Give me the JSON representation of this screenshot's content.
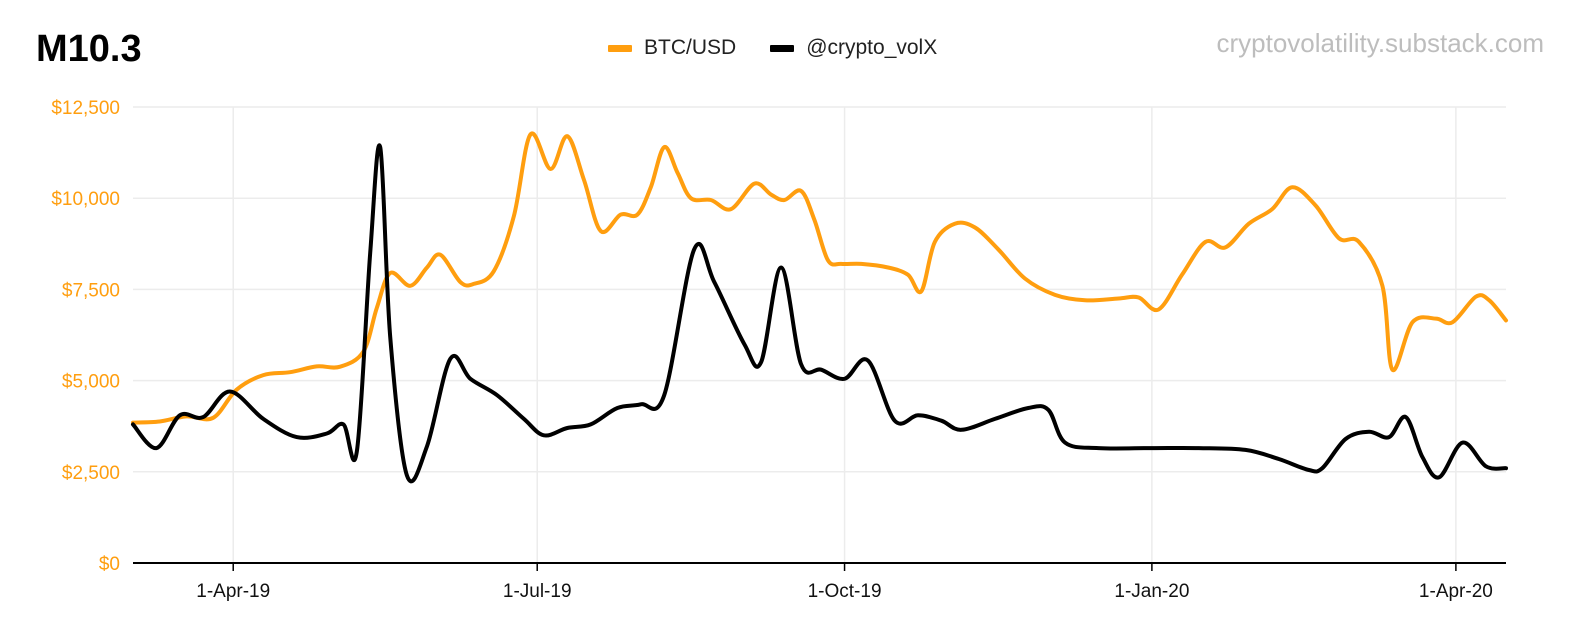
{
  "title": "M10.3",
  "watermark": "cryptovolatility.substack.com",
  "colors": {
    "btc": "#FF9E0F",
    "volx": "#000000",
    "ytick": "#FF9E0F",
    "grid": "#ECECEC",
    "axis": "#000000"
  },
  "chart_data": {
    "type": "line",
    "x_type": "date",
    "xlim": [
      "2019-03-02",
      "2020-04-16"
    ],
    "ylim": [
      0,
      12500
    ],
    "yticks": [
      0,
      2500,
      5000,
      7500,
      10000,
      12500
    ],
    "ytick_labels": [
      "$0",
      "$2,500",
      "$5,000",
      "$7,500",
      "$10,000",
      "$12,500"
    ],
    "xticks": [
      "2019-04-01",
      "2019-07-01",
      "2019-10-01",
      "2020-01-01",
      "2020-04-01"
    ],
    "xtick_labels": [
      "1-Apr-19",
      "1-Jul-19",
      "1-Oct-19",
      "1-Jan-20",
      "1-Apr-20"
    ],
    "grid": true,
    "legend_position": "top-center",
    "series": [
      {
        "name": "BTC/USD",
        "color": "#FF9E0F",
        "points": [
          [
            "2019-03-02",
            3850
          ],
          [
            "2019-03-10",
            3880
          ],
          [
            "2019-03-18",
            4020
          ],
          [
            "2019-03-26",
            3980
          ],
          [
            "2019-04-02",
            4750
          ],
          [
            "2019-04-10",
            5150
          ],
          [
            "2019-04-18",
            5230
          ],
          [
            "2019-04-26",
            5390
          ],
          [
            "2019-05-03",
            5380
          ],
          [
            "2019-05-10",
            5800
          ],
          [
            "2019-05-14",
            7000
          ],
          [
            "2019-05-18",
            7950
          ],
          [
            "2019-05-24",
            7600
          ],
          [
            "2019-05-29",
            8100
          ],
          [
            "2019-06-02",
            8450
          ],
          [
            "2019-06-08",
            7700
          ],
          [
            "2019-06-12",
            7650
          ],
          [
            "2019-06-18",
            8000
          ],
          [
            "2019-06-24",
            9500
          ],
          [
            "2019-06-29",
            11750
          ],
          [
            "2019-07-05",
            10800
          ],
          [
            "2019-07-10",
            11700
          ],
          [
            "2019-07-15",
            10500
          ],
          [
            "2019-07-20",
            9100
          ],
          [
            "2019-07-26",
            9550
          ],
          [
            "2019-07-31",
            9550
          ],
          [
            "2019-08-04",
            10300
          ],
          [
            "2019-08-08",
            11400
          ],
          [
            "2019-08-12",
            10700
          ],
          [
            "2019-08-16",
            10000
          ],
          [
            "2019-08-22",
            9950
          ],
          [
            "2019-08-28",
            9700
          ],
          [
            "2019-09-04",
            10400
          ],
          [
            "2019-09-09",
            10100
          ],
          [
            "2019-09-13",
            9950
          ],
          [
            "2019-09-18",
            10200
          ],
          [
            "2019-09-22",
            9400
          ],
          [
            "2019-09-26",
            8300
          ],
          [
            "2019-09-30",
            8200
          ],
          [
            "2019-10-06",
            8200
          ],
          [
            "2019-10-14",
            8100
          ],
          [
            "2019-10-20",
            7900
          ],
          [
            "2019-10-24",
            7450
          ],
          [
            "2019-10-28",
            8800
          ],
          [
            "2019-11-03",
            9300
          ],
          [
            "2019-11-09",
            9200
          ],
          [
            "2019-11-16",
            8600
          ],
          [
            "2019-11-24",
            7800
          ],
          [
            "2019-12-03",
            7350
          ],
          [
            "2019-12-12",
            7200
          ],
          [
            "2019-12-22",
            7250
          ],
          [
            "2019-12-28",
            7280
          ],
          [
            "2020-01-03",
            6950
          ],
          [
            "2020-01-10",
            7900
          ],
          [
            "2020-01-17",
            8800
          ],
          [
            "2020-01-23",
            8650
          ],
          [
            "2020-01-30",
            9300
          ],
          [
            "2020-02-06",
            9700
          ],
          [
            "2020-02-12",
            10300
          ],
          [
            "2020-02-19",
            9800
          ],
          [
            "2020-02-26",
            8900
          ],
          [
            "2020-03-03",
            8800
          ],
          [
            "2020-03-10",
            7600
          ],
          [
            "2020-03-13",
            5300
          ],
          [
            "2020-03-19",
            6600
          ],
          [
            "2020-03-26",
            6700
          ],
          [
            "2020-03-31",
            6600
          ],
          [
            "2020-04-07",
            7300
          ],
          [
            "2020-04-11",
            7200
          ],
          [
            "2020-04-16",
            6650
          ]
        ]
      },
      {
        "name": "@crypto_volX",
        "color": "#000000",
        "points": [
          [
            "2019-03-02",
            3800
          ],
          [
            "2019-03-09",
            3150
          ],
          [
            "2019-03-16",
            4050
          ],
          [
            "2019-03-23",
            4000
          ],
          [
            "2019-03-31",
            4700
          ],
          [
            "2019-04-10",
            3950
          ],
          [
            "2019-04-20",
            3450
          ],
          [
            "2019-04-29",
            3550
          ],
          [
            "2019-05-04",
            3800
          ],
          [
            "2019-05-08",
            3050
          ],
          [
            "2019-05-12",
            8500
          ],
          [
            "2019-05-15",
            11400
          ],
          [
            "2019-05-18",
            6200
          ],
          [
            "2019-05-23",
            2400
          ],
          [
            "2019-05-29",
            3200
          ],
          [
            "2019-06-05",
            5600
          ],
          [
            "2019-06-11",
            5050
          ],
          [
            "2019-06-19",
            4600
          ],
          [
            "2019-06-27",
            3950
          ],
          [
            "2019-07-03",
            3500
          ],
          [
            "2019-07-10",
            3700
          ],
          [
            "2019-07-17",
            3800
          ],
          [
            "2019-07-25",
            4250
          ],
          [
            "2019-08-01",
            4350
          ],
          [
            "2019-08-08",
            4600
          ],
          [
            "2019-08-17",
            8600
          ],
          [
            "2019-08-23",
            7700
          ],
          [
            "2019-09-01",
            6000
          ],
          [
            "2019-09-06",
            5500
          ],
          [
            "2019-09-12",
            8100
          ],
          [
            "2019-09-18",
            5450
          ],
          [
            "2019-09-24",
            5300
          ],
          [
            "2019-10-01",
            5050
          ],
          [
            "2019-10-08",
            5550
          ],
          [
            "2019-10-16",
            3900
          ],
          [
            "2019-10-23",
            4050
          ],
          [
            "2019-10-30",
            3900
          ],
          [
            "2019-11-05",
            3650
          ],
          [
            "2019-11-15",
            3950
          ],
          [
            "2019-11-25",
            4250
          ],
          [
            "2019-12-01",
            4200
          ],
          [
            "2019-12-06",
            3300
          ],
          [
            "2019-12-16",
            3150
          ],
          [
            "2020-01-01",
            3150
          ],
          [
            "2020-01-15",
            3150
          ],
          [
            "2020-01-29",
            3100
          ],
          [
            "2020-02-08",
            2850
          ],
          [
            "2020-02-17",
            2550
          ],
          [
            "2020-02-21",
            2600
          ],
          [
            "2020-02-28",
            3400
          ],
          [
            "2020-03-06",
            3600
          ],
          [
            "2020-03-12",
            3450
          ],
          [
            "2020-03-17",
            4000
          ],
          [
            "2020-03-22",
            2900
          ],
          [
            "2020-03-27",
            2350
          ],
          [
            "2020-04-03",
            3300
          ],
          [
            "2020-04-10",
            2650
          ],
          [
            "2020-04-16",
            2600
          ]
        ]
      }
    ]
  }
}
